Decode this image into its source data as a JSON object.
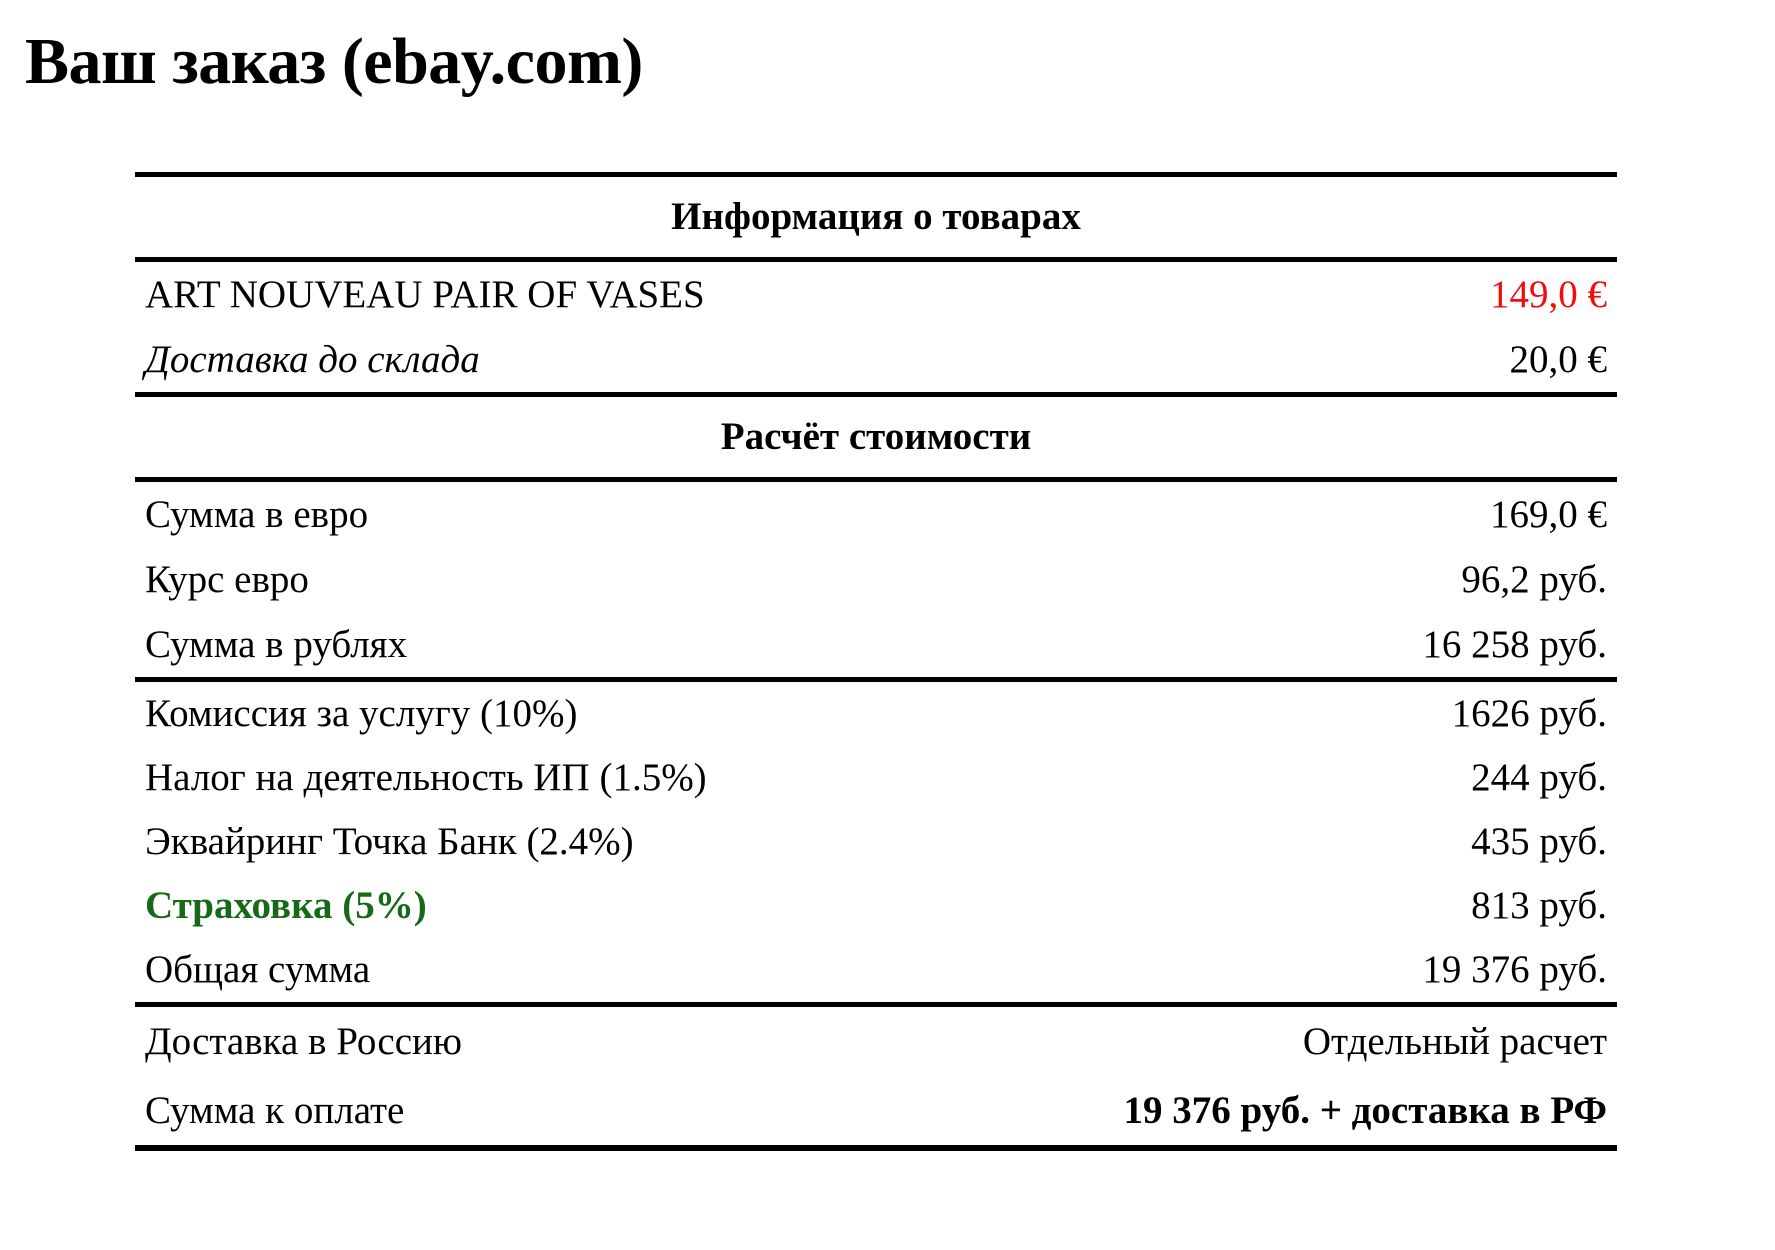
{
  "title": "Ваш заказ (ebay.com)",
  "colors": {
    "accent_red": "#f20d0d",
    "accent_green": "#17691a"
  },
  "table": {
    "products_header": "Информация о товарах",
    "products": [
      {
        "label": "ART NOUVEAU PAIR OF VASES",
        "value": "149,0 €"
      },
      {
        "label": "Доставка до склада",
        "value": "20,0 €"
      }
    ],
    "calc_header": "Расчёт стоимости",
    "conversion": [
      {
        "label": "Сумма в евро",
        "value": "169,0 €"
      },
      {
        "label": "Курс евро",
        "value": "96,2 руб."
      },
      {
        "label": "Сумма в рублях",
        "value": "16 258 руб."
      }
    ],
    "fees": [
      {
        "label": "Комиссия за услугу (10%)",
        "value": "1626 руб."
      },
      {
        "label": "Налог на деятельность ИП (1.5%)",
        "value": "244 руб."
      },
      {
        "label": "Эквайринг Точка Банк (2.4%)",
        "value": "435 руб."
      },
      {
        "label": "Страховка (5%)",
        "value": "813 руб."
      },
      {
        "label": "Общая сумма",
        "value": "19 376 руб."
      }
    ],
    "summary": [
      {
        "label": "Доставка в Россию",
        "value": "Отдельный расчет"
      },
      {
        "label": "Сумма к оплате",
        "value": "19 376 руб. + доставка в РФ"
      }
    ]
  }
}
